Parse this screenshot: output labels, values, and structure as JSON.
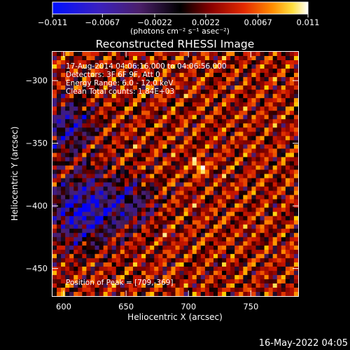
{
  "chart_data": {
    "type": "heatmap",
    "title": "Reconstructed RHESSI Image",
    "xlabel": "Heliocentric X (arcsec)",
    "ylabel": "Heliocentric Y (arcsec)",
    "xlim": [
      591,
      788
    ],
    "ylim": [
      -472,
      -277
    ],
    "x_ticks": [
      600,
      650,
      700,
      750
    ],
    "y_ticks": [
      -300,
      -350,
      -400,
      -450
    ],
    "x_tick_labels": [
      "600",
      "650",
      "700",
      "750"
    ],
    "y_tick_labels": [
      "−300",
      "−350",
      "−400",
      "−450"
    ],
    "colorbar": {
      "ticks": [
        -0.011,
        -0.0067,
        -0.0022,
        0.0022,
        0.0067,
        0.011
      ],
      "tick_labels": [
        "−0.011",
        "−0.0067",
        "−0.0022",
        "0.0022",
        "0.0067",
        "0.011"
      ],
      "unit_label": "(photons cm⁻² s⁻¹ asec⁻²)",
      "range": [
        -0.011,
        0.011
      ]
    },
    "annotations": [
      "17-Aug-2014 04:06:16.000 to 04:06:56.000",
      "Detectors: 3F 6F 9F, Att 0",
      "Energy Range: 6.0 - 12.0 keV",
      "Clean     Total counts: 1.84E+03"
    ],
    "peak_text": "Position of Peak = [709,-369]",
    "peak": {
      "x": 709,
      "y": -369
    },
    "colormap": [
      "#0000ff",
      "#3a1a8c",
      "#4b1f6a",
      "#000000",
      "#7a0000",
      "#d21a00",
      "#ff7a00",
      "#ffd200",
      "#ffffff"
    ]
  },
  "footer": {
    "timestamp": "16-May-2022 04:05"
  }
}
